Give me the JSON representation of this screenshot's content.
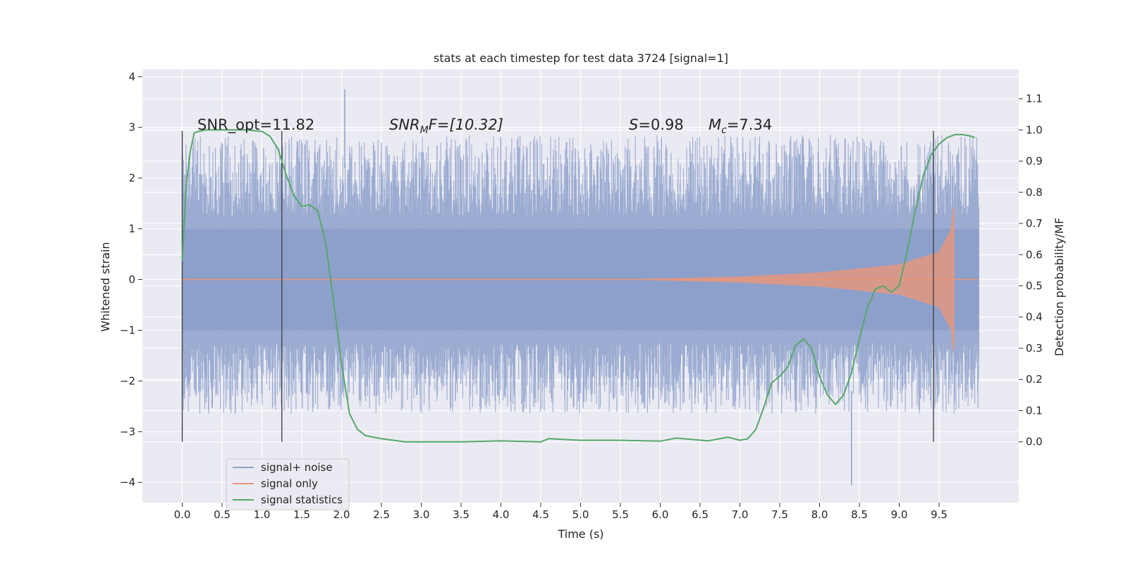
{
  "chart_data": {
    "type": "line",
    "title": "stats at each timestep for test data 3724 [signal=1]",
    "xlabel": "Time (s)",
    "ylabel": "Whitened strain",
    "ylabel_right": "Detection probability/MF",
    "xlim": [
      -0.5,
      10.5
    ],
    "ylim": [
      -4.4,
      4.15
    ],
    "ylim_right": [
      -0.195,
      1.195
    ],
    "x_ticks": [
      "0.0",
      "0.5",
      "1.0",
      "1.5",
      "2.0",
      "2.5",
      "3.0",
      "3.5",
      "4.0",
      "4.5",
      "5.0",
      "5.5",
      "6.0",
      "6.5",
      "7.0",
      "7.5",
      "8.0",
      "8.5",
      "9.0",
      "9.5"
    ],
    "y_ticks": [
      "4",
      "3",
      "2",
      "1",
      "0",
      "−1",
      "−2",
      "−3",
      "−4"
    ],
    "y_ticks_right": [
      "1.1",
      "1.0",
      "0.9",
      "0.8",
      "0.7",
      "0.6",
      "0.5",
      "0.4",
      "0.3",
      "0.2",
      "0.1",
      "0.0"
    ],
    "grid": true,
    "legend_position": "lower left",
    "annotations": {
      "snr_opt": "SNR_opt=11.82",
      "snr_mf_prefix": "SNR",
      "snr_mf_sub": "M",
      "snr_mf_suffix": "F=[10.32]",
      "s_symbol": "S",
      "s_value": "=0.98",
      "mc_symbol": "M",
      "mc_sub": "c",
      "mc_value": "=7.34"
    },
    "vertical_markers": [
      0.0,
      1.25,
      9.43
    ],
    "series": [
      {
        "name": "signal+ noise",
        "color": "#8da0cb",
        "x_range": [
          0.0,
          10.0
        ],
        "core_amplitude": 1.0,
        "typical_peak": [
          -2.4,
          2.6
        ],
        "extremes": [
          -4.05,
          3.75
        ]
      },
      {
        "name": "signal only",
        "color": "#e9967a",
        "x_range": [
          0.0,
          9.7
        ],
        "envelope": {
          "x": [
            0.0,
            5.5,
            7.0,
            8.0,
            9.0,
            9.5,
            9.65,
            9.68
          ],
          "amp": [
            0.0,
            0.0,
            0.06,
            0.14,
            0.3,
            0.55,
            1.0,
            1.4
          ]
        }
      },
      {
        "name": "signal statistics",
        "color": "#55a868",
        "axis": "right",
        "x": [
          0.0,
          0.05,
          0.1,
          0.15,
          0.2,
          0.3,
          0.5,
          0.8,
          1.0,
          1.1,
          1.2,
          1.3,
          1.4,
          1.5,
          1.6,
          1.7,
          1.8,
          1.9,
          2.0,
          2.1,
          2.2,
          2.3,
          2.5,
          2.8,
          3.0,
          3.5,
          4.0,
          4.5,
          4.6,
          5.0,
          5.5,
          6.0,
          6.2,
          6.6,
          6.85,
          7.0,
          7.1,
          7.2,
          7.3,
          7.4,
          7.5,
          7.6,
          7.7,
          7.8,
          7.9,
          8.0,
          8.1,
          8.2,
          8.3,
          8.4,
          8.5,
          8.6,
          8.7,
          8.8,
          8.9,
          9.0,
          9.1,
          9.2,
          9.3,
          9.4,
          9.5,
          9.6,
          9.7,
          9.8,
          9.9,
          9.95
        ],
        "y": [
          0.58,
          0.82,
          0.93,
          0.99,
          0.995,
          1.0,
          1.0,
          1.0,
          0.995,
          0.98,
          0.94,
          0.86,
          0.79,
          0.755,
          0.76,
          0.74,
          0.64,
          0.45,
          0.25,
          0.09,
          0.04,
          0.02,
          0.01,
          0.0,
          0.0,
          0.0,
          0.003,
          0.0,
          0.01,
          0.005,
          0.005,
          0.002,
          0.012,
          0.003,
          0.015,
          0.005,
          0.01,
          0.04,
          0.11,
          0.19,
          0.21,
          0.24,
          0.31,
          0.33,
          0.3,
          0.21,
          0.15,
          0.12,
          0.15,
          0.22,
          0.33,
          0.43,
          0.49,
          0.5,
          0.48,
          0.5,
          0.61,
          0.74,
          0.85,
          0.92,
          0.955,
          0.975,
          0.985,
          0.985,
          0.98,
          0.975
        ]
      }
    ]
  }
}
